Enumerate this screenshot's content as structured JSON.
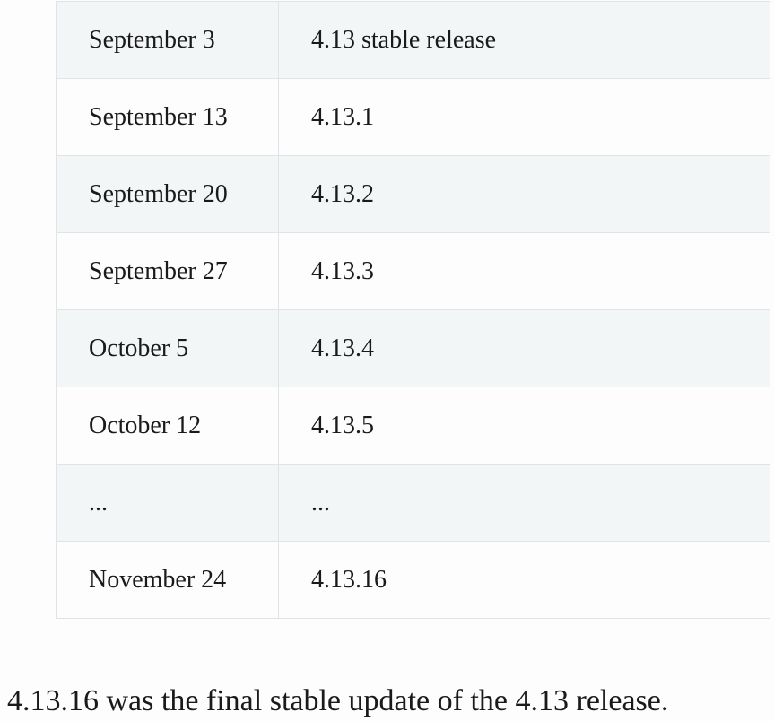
{
  "table": {
    "rows": [
      {
        "date": "September 3",
        "version": "4.13 stable release"
      },
      {
        "date": "September 13",
        "version": "4.13.1"
      },
      {
        "date": "September 20",
        "version": "4.13.2"
      },
      {
        "date": "September 27",
        "version": "4.13.3"
      },
      {
        "date": "October 5",
        "version": "4.13.4"
      },
      {
        "date": "October 12",
        "version": "4.13.5"
      },
      {
        "date": "...",
        "version": "..."
      },
      {
        "date": "November 24",
        "version": "4.13.16"
      }
    ]
  },
  "summary": {
    "text": "4.13.16 was the final stable update of the 4.13 release."
  }
}
